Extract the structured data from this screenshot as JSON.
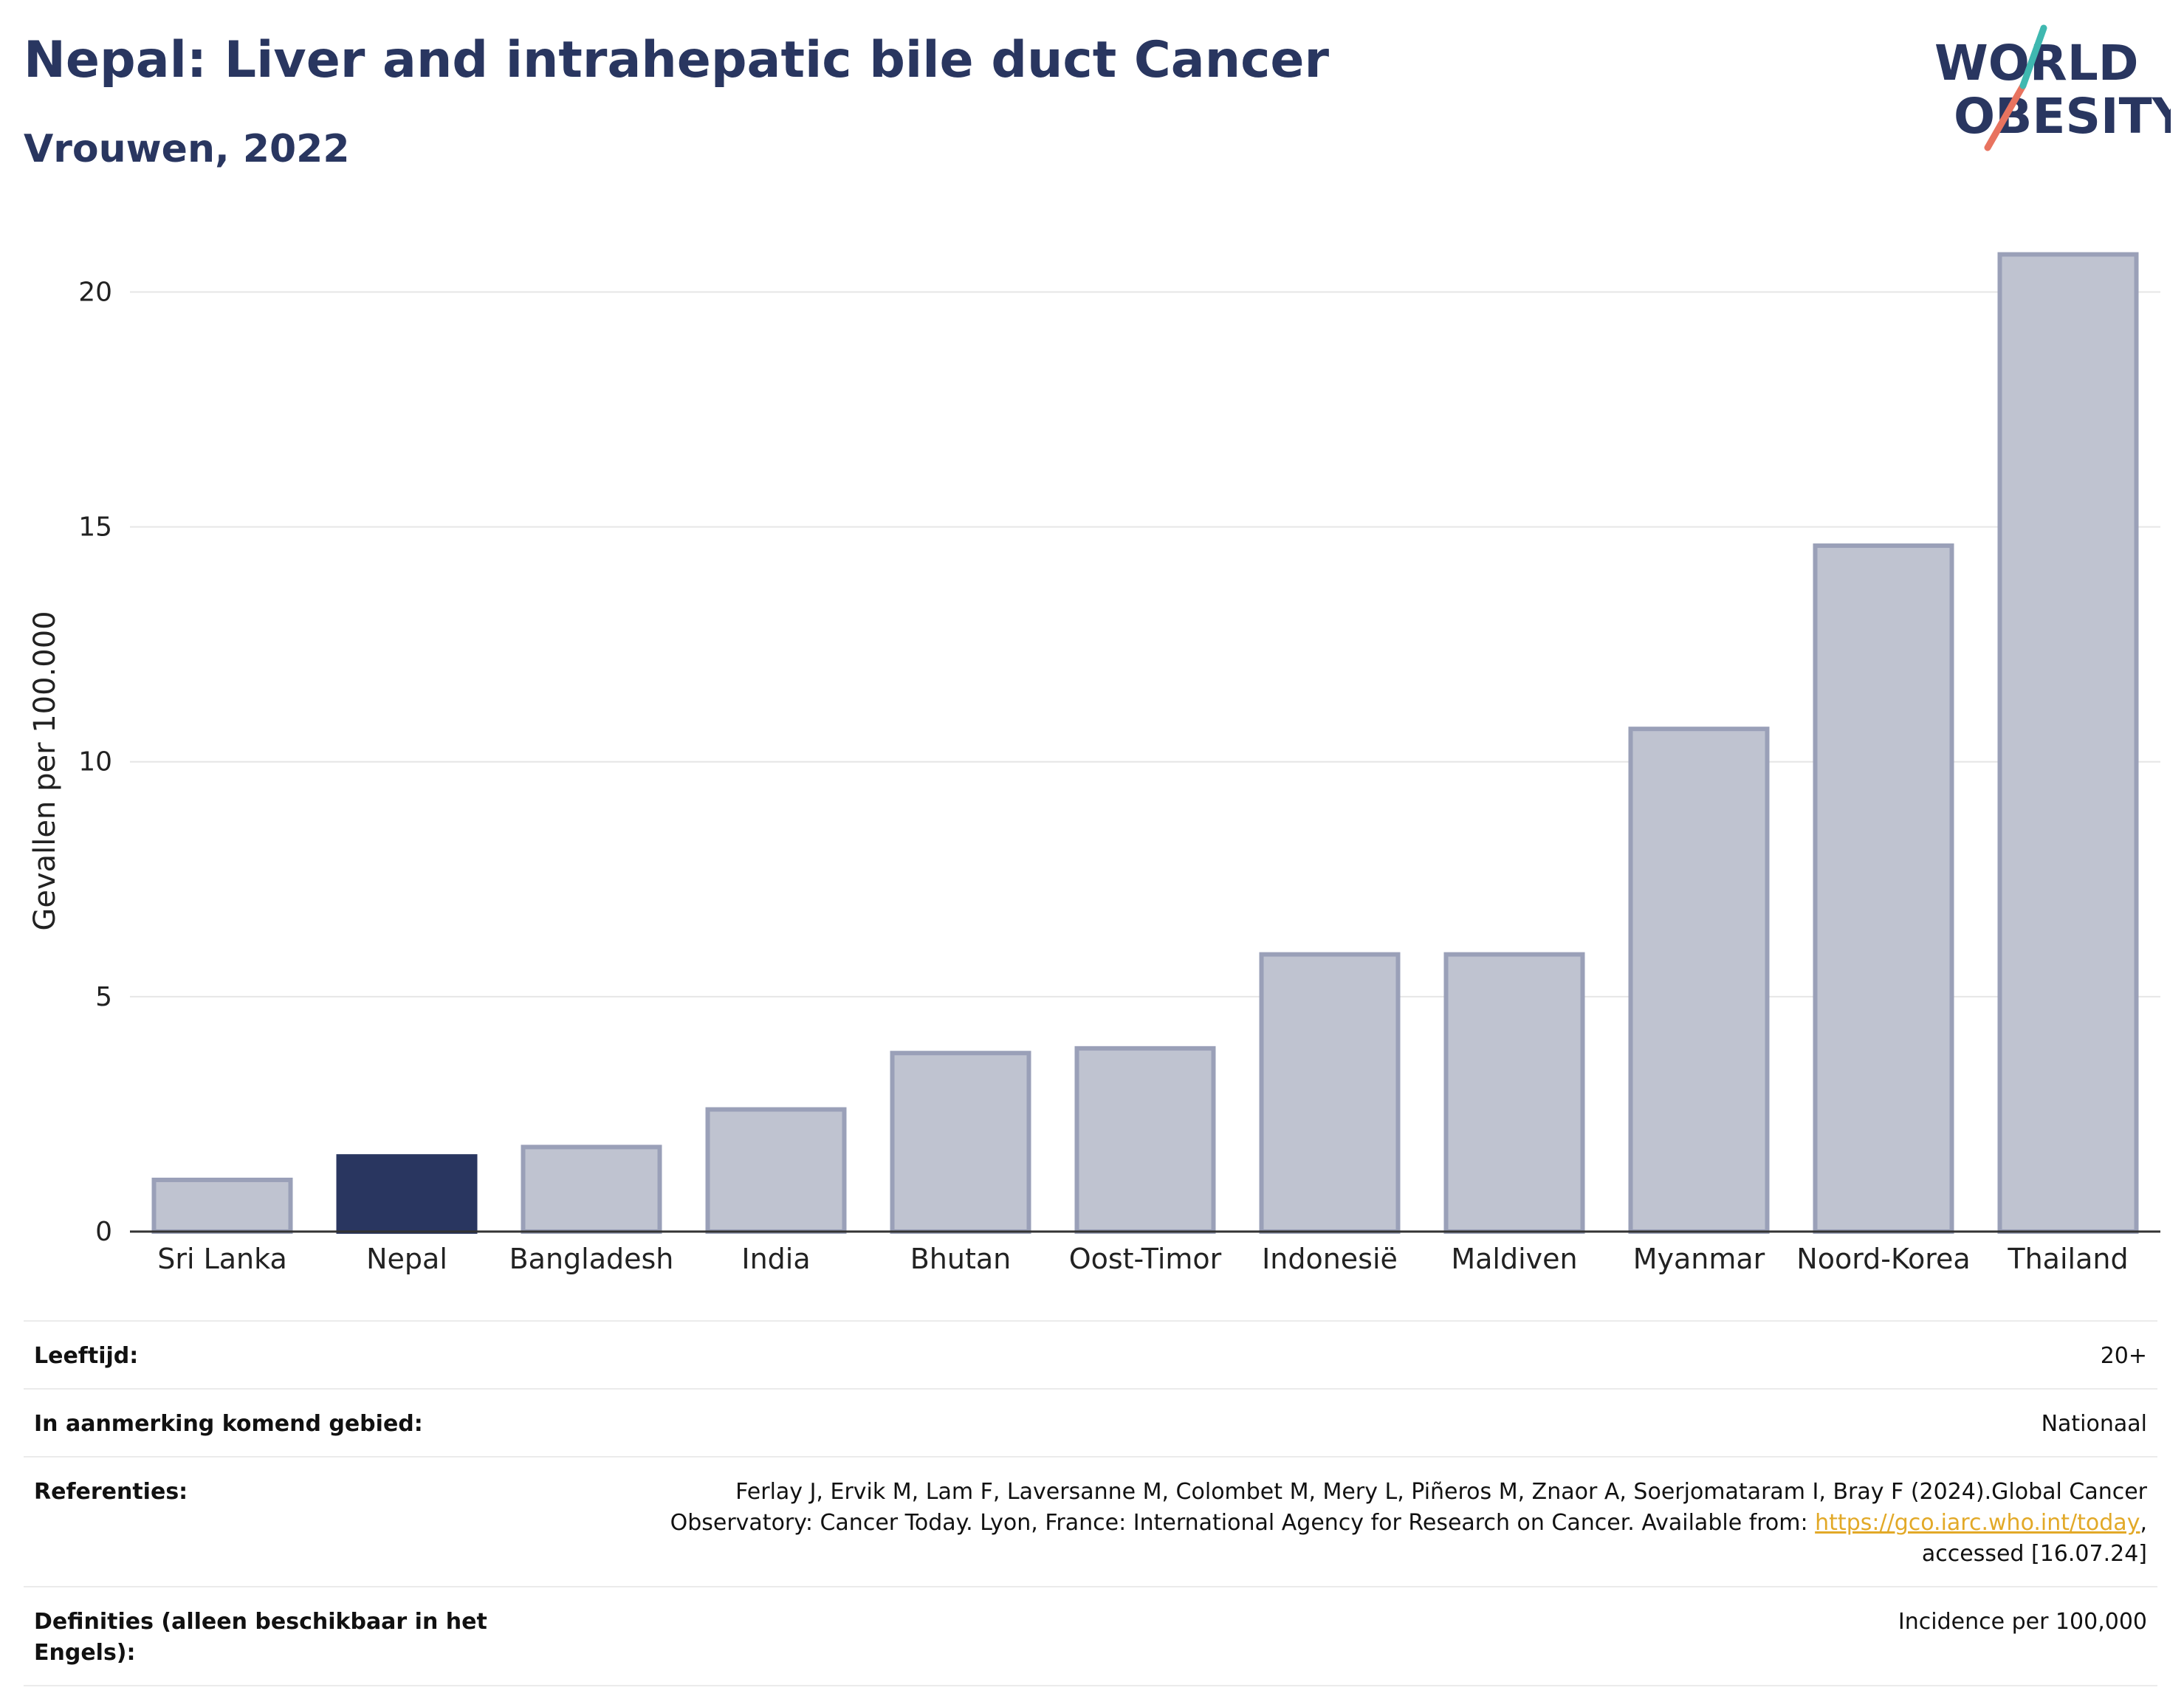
{
  "header": {
    "title": "Nepal: Liver and intrahepatic bile duct Cancer",
    "subtitle": "Vrouwen, 2022"
  },
  "logo": {
    "line1": "WORLD",
    "line2": "OBESITY"
  },
  "chart_data": {
    "type": "bar",
    "categories": [
      "Sri Lanka",
      "Nepal",
      "Bangladesh",
      "India",
      "Bhutan",
      "Oost-Timor",
      "Indonesië",
      "Maldiven",
      "Myanmar",
      "Noord-Korea",
      "Thailand"
    ],
    "values": [
      1.1,
      1.6,
      1.8,
      2.6,
      3.8,
      3.9,
      5.9,
      5.9,
      10.7,
      14.6,
      20.8
    ],
    "highlight": "Nepal",
    "ylabel": "Gevallen per 100.000",
    "xlabel": "",
    "ylim": [
      0,
      21.5
    ],
    "yticks": [
      0,
      5,
      10,
      15,
      20
    ],
    "grid": true,
    "colors": {
      "bar": "#bfc3d0",
      "bar_border": "#9aa0b8",
      "highlight": "#293660",
      "grid": "#e6e6e6",
      "axis": "#333333"
    }
  },
  "meta": {
    "rows": [
      {
        "key": "Leeftijd:",
        "value": "20+"
      },
      {
        "key": "In aanmerking komend gebied:",
        "value": "Nationaal"
      },
      {
        "key": "Referenties:",
        "value_line1": "Ferlay J, Ervik M, Lam F, Laversanne M, Colombet M, Mery L, Piñeros M, Znaor A, Soerjomataram I, Bray F (2024).Global Cancer",
        "value_line2_pre": "Observatory: Cancer Today. Lyon, France: International Agency for Research on Cancer. Available from: ",
        "value_link": "https://gco.iarc.who.int/today",
        "value_line2_post": ",",
        "value_line3": "accessed [16.07.24]"
      },
      {
        "key": "Definities (alleen beschikbaar in het Engels):",
        "value": "Incidence per 100,000"
      }
    ]
  }
}
